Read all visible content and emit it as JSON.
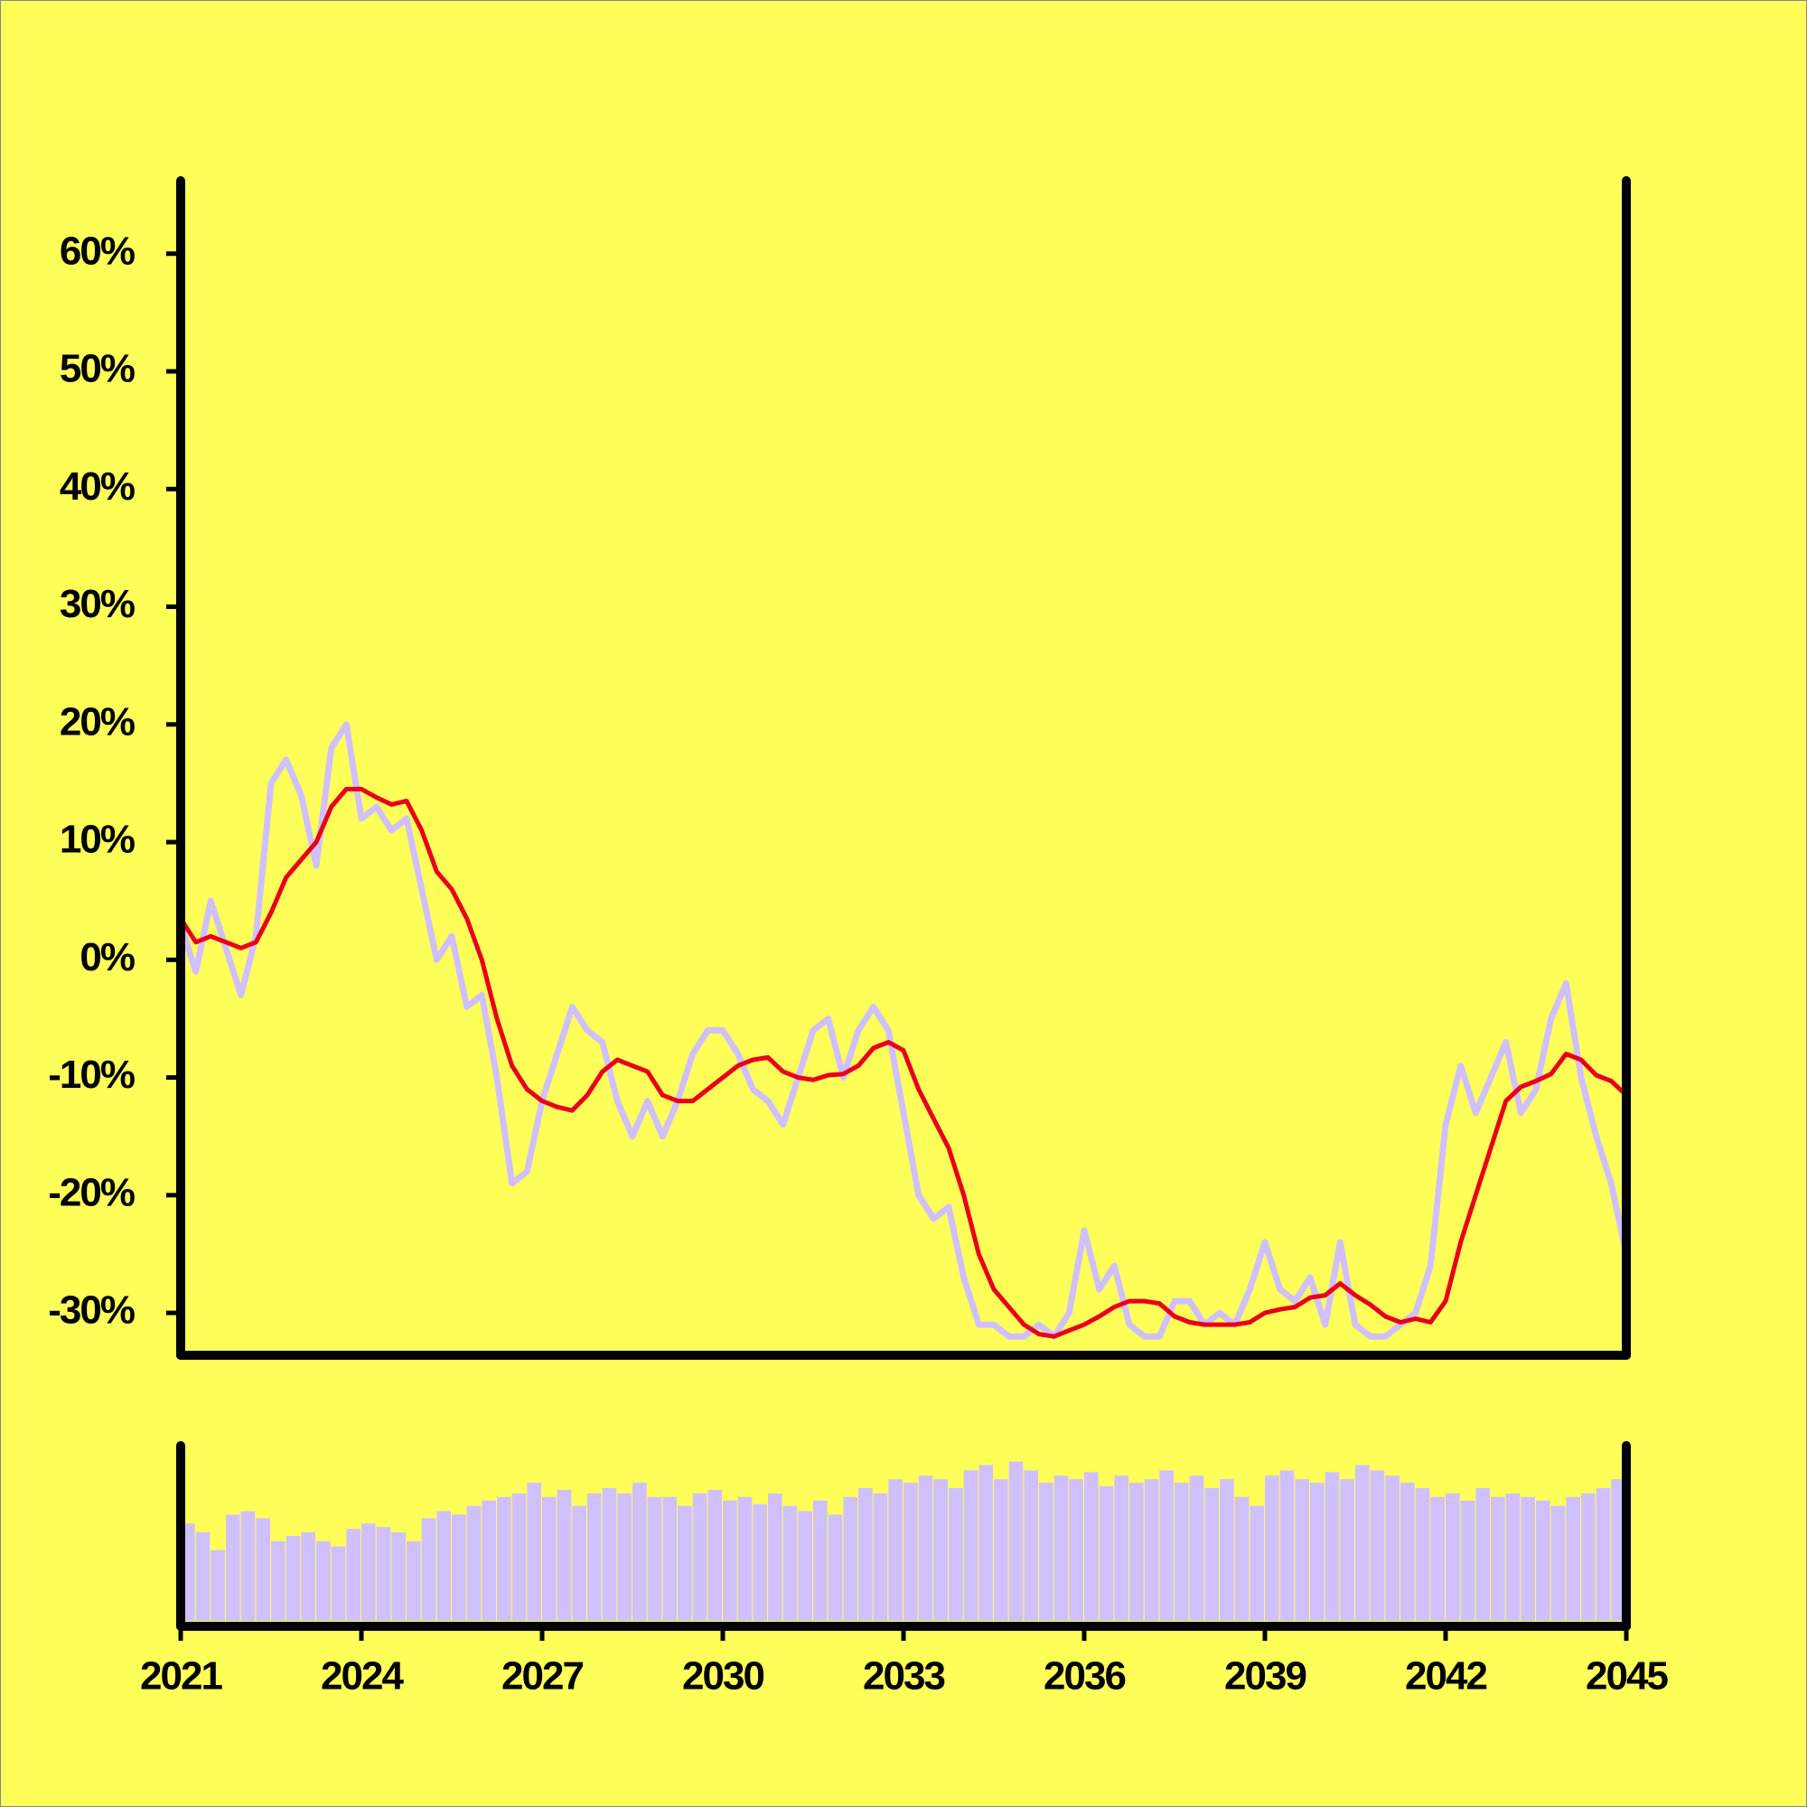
{
  "chart_data": [
    {
      "type": "line",
      "x": [
        2021,
        2021.25,
        2021.5,
        2021.75,
        2022,
        2022.25,
        2022.5,
        2022.75,
        2023,
        2023.25,
        2023.5,
        2023.75,
        2024,
        2024.25,
        2024.5,
        2024.75,
        2025,
        2025.25,
        2025.5,
        2025.75,
        2026,
        2026.25,
        2026.5,
        2026.75,
        2027,
        2027.25,
        2027.5,
        2027.75,
        2028,
        2028.25,
        2028.5,
        2028.75,
        2029,
        2029.25,
        2029.5,
        2029.75,
        2030,
        2030.25,
        2030.5,
        2030.75,
        2031,
        2031.25,
        2031.5,
        2031.75,
        2032,
        2032.25,
        2032.5,
        2032.75,
        2033,
        2033.25,
        2033.5,
        2033.75,
        2034,
        2034.25,
        2034.5,
        2034.75,
        2035,
        2035.25,
        2035.5,
        2035.75,
        2036,
        2036.25,
        2036.5,
        2036.75,
        2037,
        2037.25,
        2037.5,
        2037.75,
        2038,
        2038.25,
        2038.5,
        2038.75,
        2039,
        2039.25,
        2039.5,
        2039.75,
        2040,
        2040.25,
        2040.5,
        2040.75,
        2041,
        2041.25,
        2041.5,
        2041.75,
        2042,
        2042.25,
        2042.5,
        2042.75,
        2043,
        2043.25,
        2043.5,
        2043.75,
        2044,
        2044.25,
        2044.5,
        2044.75,
        2045
      ],
      "series": [
        {
          "color": "#d0c0ff",
          "values": [
            3,
            -1,
            5,
            1,
            -3,
            2,
            15,
            17,
            14,
            8,
            18,
            20,
            12,
            13,
            11,
            12,
            6,
            0,
            2,
            -4,
            -3,
            -10,
            -19,
            -18,
            -12,
            -8,
            -4,
            -6,
            -7,
            -12,
            -15,
            -12,
            -15,
            -12,
            -8,
            -6,
            -6,
            -8,
            -11,
            -12,
            -14,
            -10,
            -6,
            -5,
            -10,
            -6,
            -4,
            -6,
            -13,
            -20,
            -22,
            -21,
            -27,
            -31,
            -31,
            -32,
            -32,
            -31,
            -32,
            -30,
            -23,
            -28,
            -26,
            -31,
            -32,
            -32,
            -29,
            -29,
            -31,
            -30,
            -31,
            -28,
            -24,
            -28,
            -29,
            -27,
            -31,
            -24,
            -31,
            -32,
            -32,
            -31,
            -30,
            -26,
            -14,
            -9,
            -13,
            -10,
            -7,
            -13,
            -11,
            -5,
            -2,
            -10,
            -15,
            -19,
            -25
          ]
        },
        {
          "color": "#e8001a",
          "values": [
            3.5,
            1.5,
            2,
            1.5,
            1,
            1.5,
            4,
            7,
            8.5,
            10,
            13,
            14.5,
            14.5,
            13.8,
            13.2,
            13.5,
            11,
            7.5,
            6,
            3.5,
            0,
            -5,
            -9,
            -11,
            -12,
            -12.5,
            -12.8,
            -11.5,
            -9.5,
            -8.5,
            -9,
            -9.5,
            -11.5,
            -12,
            -12,
            -11,
            -10,
            -9,
            -8.5,
            -8.3,
            -9.5,
            -10,
            -10.2,
            -9.8,
            -9.7,
            -9,
            -7.5,
            -7,
            -7.7,
            -11,
            -13.5,
            -16,
            -20,
            -25,
            -28,
            -29.5,
            -31,
            -31.8,
            -32,
            -31.5,
            -31,
            -30.3,
            -29.5,
            -29,
            -29,
            -29.2,
            -30.3,
            -30.8,
            -31,
            -31,
            -31,
            -30.8,
            -30,
            -29.7,
            -29.5,
            -28.7,
            -28.5,
            -27.5,
            -28.5,
            -29.3,
            -30.3,
            -30.8,
            -30.5,
            -30.8,
            -29,
            -24,
            -20,
            -16,
            -12,
            -10.8,
            -10.3,
            -9.7,
            -8,
            -8.5,
            -9.8,
            -10.3,
            -11.5
          ]
        }
      ],
      "xlim": [
        2021,
        2045
      ],
      "ylim": [
        -33.6,
        66.2
      ],
      "yticks": [
        {
          "value": -30,
          "label": "-30%"
        },
        {
          "value": -20,
          "label": "-20%"
        },
        {
          "value": -10,
          "label": "-10%"
        },
        {
          "value": 0,
          "label": "0%"
        },
        {
          "value": 10,
          "label": "10%"
        },
        {
          "value": 20,
          "label": "20%"
        },
        {
          "value": 30,
          "label": "30%"
        },
        {
          "value": 40,
          "label": "40%"
        },
        {
          "value": 50,
          "label": "50%"
        },
        {
          "value": 60,
          "label": "60%"
        }
      ]
    },
    {
      "type": "bar",
      "x": [
        2021,
        2021.25,
        2021.5,
        2021.75,
        2022,
        2022.25,
        2022.5,
        2022.75,
        2023,
        2023.25,
        2023.5,
        2023.75,
        2024,
        2024.25,
        2024.5,
        2024.75,
        2025,
        2025.25,
        2025.5,
        2025.75,
        2026,
        2026.25,
        2026.5,
        2026.75,
        2027,
        2027.25,
        2027.5,
        2027.75,
        2028,
        2028.25,
        2028.5,
        2028.75,
        2029,
        2029.25,
        2029.5,
        2029.75,
        2030,
        2030.25,
        2030.5,
        2030.75,
        2031,
        2031.25,
        2031.5,
        2031.75,
        2032,
        2032.25,
        2032.5,
        2032.75,
        2033,
        2033.25,
        2033.5,
        2033.75,
        2034,
        2034.25,
        2034.5,
        2034.75,
        2035,
        2035.25,
        2035.5,
        2035.75,
        2036,
        2036.25,
        2036.5,
        2036.75,
        2037,
        2037.25,
        2037.5,
        2037.75,
        2038,
        2038.25,
        2038.5,
        2038.75,
        2039,
        2039.25,
        2039.5,
        2039.75,
        2040,
        2040.25,
        2040.5,
        2040.75,
        2041,
        2041.25,
        2041.5,
        2041.75,
        2042,
        2042.25,
        2042.5,
        2042.75,
        2043,
        2043.25,
        2043.5,
        2043.75,
        2044,
        2044.25,
        2044.5,
        2044.75
      ],
      "values": [
        55,
        50,
        40,
        60,
        62,
        58,
        45,
        48,
        50,
        45,
        42,
        52,
        55,
        53,
        50,
        45,
        58,
        62,
        60,
        65,
        68,
        70,
        72,
        78,
        70,
        74,
        65,
        72,
        75,
        72,
        78,
        70,
        70,
        65,
        72,
        74,
        68,
        70,
        66,
        72,
        65,
        62,
        68,
        60,
        70,
        75,
        72,
        80,
        78,
        82,
        80,
        75,
        85,
        88,
        80,
        90,
        85,
        78,
        82,
        80,
        84,
        76,
        82,
        78,
        80,
        85,
        78,
        82,
        75,
        80,
        70,
        65,
        82,
        85,
        80,
        78,
        84,
        80,
        88,
        85,
        82,
        78,
        75,
        70,
        72,
        68,
        75,
        70,
        72,
        70,
        68,
        65,
        70,
        72,
        75,
        80
      ],
      "color": "#d0c0ff",
      "xlim": [
        2021,
        2045
      ],
      "ylim": [
        0,
        100
      ],
      "xticks": [
        2021,
        2024,
        2027,
        2030,
        2033,
        2036,
        2039,
        2042,
        2045
      ]
    }
  ]
}
